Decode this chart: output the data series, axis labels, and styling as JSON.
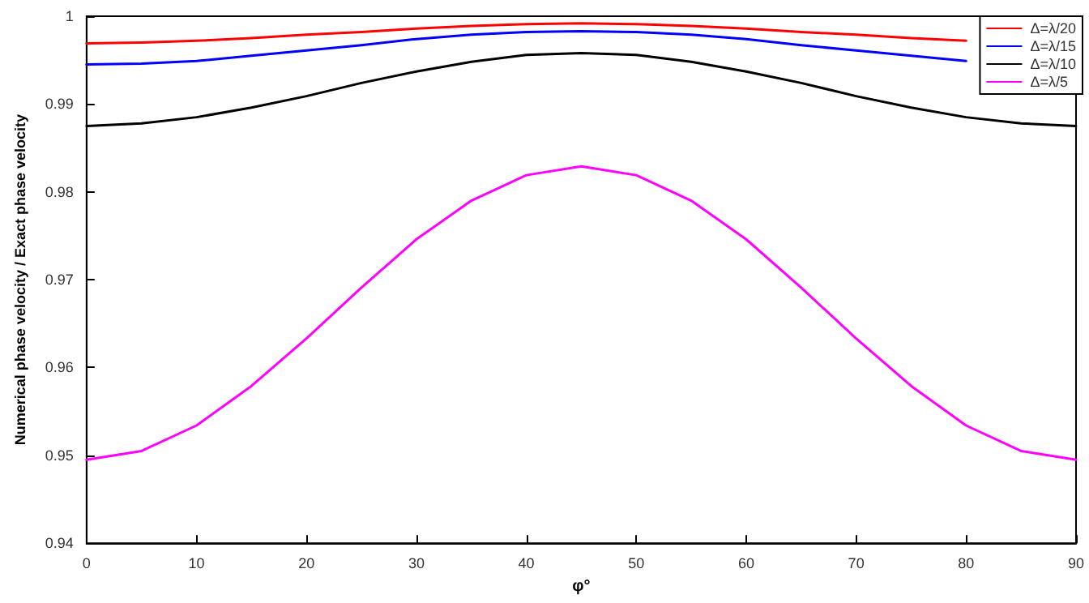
{
  "chart_data": {
    "type": "line",
    "xlabel": "φ°",
    "ylabel": "Numerical phase velocity / Exact phase velocity",
    "x": [
      0,
      5,
      10,
      15,
      20,
      25,
      30,
      35,
      40,
      45,
      50,
      55,
      60,
      65,
      70,
      75,
      80,
      85,
      90
    ],
    "series": [
      {
        "name": "Δ=λ/20",
        "color": "#ff0000",
        "values": [
          0.9969,
          0.997,
          0.9972,
          0.9975,
          0.9979,
          0.9982,
          0.9986,
          0.9989,
          0.9991,
          0.9992,
          0.9991,
          0.9989,
          0.9986,
          0.9982,
          0.9979,
          0.9975,
          0.9972,
          null,
          null
        ]
      },
      {
        "name": "Δ=λ/15",
        "color": "#0000ff",
        "values": [
          0.9945,
          0.9946,
          0.9949,
          0.9955,
          0.9961,
          0.9967,
          0.9974,
          0.9979,
          0.9982,
          0.9983,
          0.9982,
          0.9979,
          0.9974,
          0.9967,
          0.9961,
          0.9955,
          0.9949,
          null,
          null
        ]
      },
      {
        "name": "Δ=λ/10",
        "color": "#000000",
        "values": [
          0.9875,
          0.9878,
          0.9885,
          0.9896,
          0.9909,
          0.9924,
          0.9937,
          0.9948,
          0.9956,
          0.9958,
          0.9956,
          0.9948,
          0.9937,
          0.9924,
          0.9909,
          0.9896,
          0.9885,
          0.9878,
          0.9875
        ]
      },
      {
        "name": "Δ=λ/5",
        "color": "#ff00ff",
        "values": [
          0.9495,
          0.9505,
          0.9534,
          0.9579,
          0.9633,
          0.9691,
          0.9746,
          0.979,
          0.9819,
          0.9829,
          0.9819,
          0.979,
          0.9746,
          0.9691,
          0.9633,
          0.9579,
          0.9534,
          0.9505,
          0.9495
        ]
      }
    ],
    "xlim": [
      0,
      90
    ],
    "xticks": [
      0,
      10,
      20,
      30,
      40,
      50,
      60,
      70,
      80,
      90
    ],
    "ylim": [
      0.94,
      1
    ],
    "yticks": [
      0.94,
      0.95,
      0.96,
      0.97,
      0.98,
      0.99,
      1
    ],
    "grid": false,
    "legend": "top right",
    "marker": "none",
    "line_style": "solid"
  }
}
